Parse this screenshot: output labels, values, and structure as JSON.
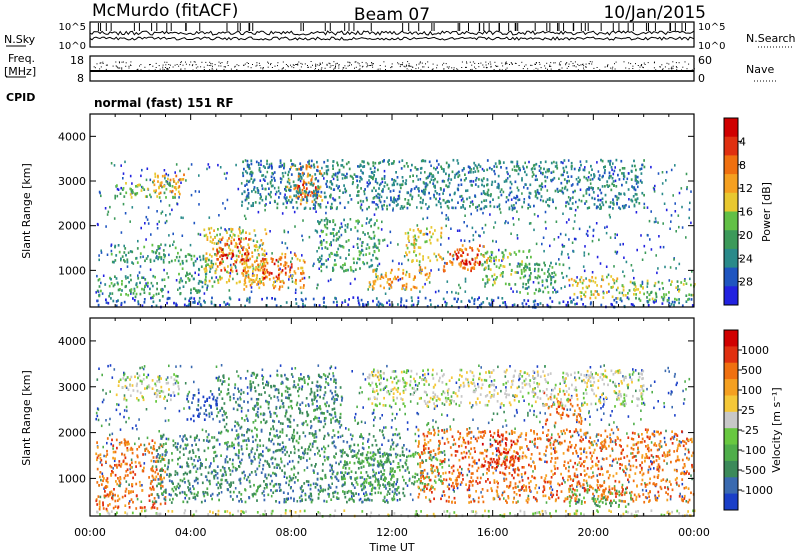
{
  "header": {
    "station": "McMurdo (fitACF)",
    "beam": "Beam 07",
    "date": "10/Jan/2015"
  },
  "noise_panel": {
    "left_label": "N.Sky",
    "right_label": "N.Search",
    "top_tick": "10^5",
    "bottom_tick": "10^0"
  },
  "freq_panel": {
    "left_label_1": "Freq.",
    "left_label_2": "[MHz]",
    "left_top_tick": "18",
    "left_bottom_tick": "8",
    "right_label": "Nave",
    "right_top_tick": "60",
    "right_bottom_tick": "0"
  },
  "cpid": {
    "label": "CPID",
    "value": "normal (fast) 151 RF"
  },
  "x_axis": {
    "label": "Time UT",
    "ticks": [
      "00:00",
      "04:00",
      "08:00",
      "12:00",
      "16:00",
      "20:00",
      "00:00"
    ]
  },
  "chart_data": [
    {
      "type": "heatmap",
      "title": "",
      "ylabel": "Slant Range [km]",
      "xlabel": "Time UT",
      "xlim_hours": [
        0,
        24
      ],
      "ylim_km": [
        180,
        4500
      ],
      "y_ticks": [
        "1000",
        "2000",
        "3000",
        "4000"
      ],
      "colorbar": {
        "label": "Power [dB]",
        "ticks": [
          "4",
          "8",
          "12",
          "16",
          "20",
          "24",
          "28"
        ],
        "colors": [
          "#2222e0",
          "#1f55c0",
          "#2a8a8a",
          "#3c9a5a",
          "#62c046",
          "#e8c830",
          "#f5a020",
          "#f07010",
          "#e03010",
          "#d00000"
        ]
      },
      "regions": [
        {
          "t0": 0.2,
          "t1": 24.0,
          "r0": 200,
          "r1": 420,
          "level": 1
        },
        {
          "t0": 0.2,
          "t1": 3.0,
          "r0": 420,
          "r1": 900,
          "level": 3
        },
        {
          "t0": 0.8,
          "t1": 3.5,
          "r0": 1200,
          "r1": 1600,
          "level": 3
        },
        {
          "t0": 1.0,
          "t1": 3.5,
          "r0": 2650,
          "r1": 3050,
          "level": 4
        },
        {
          "t0": 2.5,
          "t1": 3.7,
          "r0": 2700,
          "r1": 3200,
          "level": 6
        },
        {
          "t0": 3.5,
          "t1": 5.0,
          "r0": 500,
          "r1": 1400,
          "level": 3
        },
        {
          "t0": 4.5,
          "t1": 7.0,
          "r0": 700,
          "r1": 2000,
          "level": 5
        },
        {
          "t0": 5.0,
          "t1": 6.3,
          "r0": 1000,
          "r1": 1800,
          "level": 8
        },
        {
          "t0": 6.0,
          "t1": 8.5,
          "r0": 600,
          "r1": 1400,
          "level": 6
        },
        {
          "t0": 6.8,
          "t1": 8.0,
          "r0": 800,
          "r1": 1300,
          "level": 8
        },
        {
          "t0": 7.8,
          "t1": 9.2,
          "r0": 2500,
          "r1": 3400,
          "level": 6
        },
        {
          "t0": 8.2,
          "t1": 9.0,
          "r0": 2600,
          "r1": 2950,
          "level": 8
        },
        {
          "t0": 9.0,
          "t1": 11.5,
          "r0": 1000,
          "r1": 2200,
          "level": 3
        },
        {
          "t0": 11.0,
          "t1": 13.5,
          "r0": 600,
          "r1": 1100,
          "level": 6
        },
        {
          "t0": 12.5,
          "t1": 14.0,
          "r0": 1200,
          "r1": 2000,
          "level": 5
        },
        {
          "t0": 14.0,
          "t1": 15.8,
          "r0": 1000,
          "r1": 1600,
          "level": 7
        },
        {
          "t0": 14.5,
          "t1": 15.5,
          "r0": 1150,
          "r1": 1450,
          "level": 9
        },
        {
          "t0": 15.5,
          "t1": 17.5,
          "r0": 700,
          "r1": 1500,
          "level": 4
        },
        {
          "t0": 17.0,
          "t1": 18.8,
          "r0": 500,
          "r1": 1200,
          "level": 3
        },
        {
          "t0": 19.0,
          "t1": 21.0,
          "r0": 400,
          "r1": 900,
          "level": 5
        },
        {
          "t0": 21.0,
          "t1": 24.0,
          "r0": 350,
          "r1": 800,
          "level": 4
        },
        {
          "t0": 6.0,
          "t1": 22.0,
          "r0": 2400,
          "r1": 3500,
          "level": 2
        }
      ]
    },
    {
      "type": "heatmap",
      "title": "",
      "ylabel": "Slant Range [km]",
      "xlabel": "Time UT",
      "xlim_hours": [
        0,
        24
      ],
      "ylim_km": [
        180,
        4500
      ],
      "y_ticks": [
        "1000",
        "2000",
        "3000",
        "4000"
      ],
      "colorbar": {
        "label": "Velocity [m s⁻¹]",
        "ticks": [
          "1000",
          "500",
          "100",
          "25",
          "-25",
          "-100",
          "-500",
          "-1000"
        ],
        "colors": [
          "#1a3fc8",
          "#3a6ab0",
          "#3c8a5a",
          "#4fae4a",
          "#68c840",
          "#c8c8c8",
          "#f5c838",
          "#f5a020",
          "#f07010",
          "#e03010",
          "#d00000"
        ]
      },
      "regions": [
        {
          "t0": 0.2,
          "t1": 24.0,
          "r0": 200,
          "r1": 330,
          "level": 5
        },
        {
          "t0": 0.2,
          "t1": 3.0,
          "r0": 330,
          "r1": 1900,
          "level": 8
        },
        {
          "t0": 1.0,
          "t1": 3.5,
          "r0": 2700,
          "r1": 3300,
          "level": 5
        },
        {
          "t0": 2.5,
          "t1": 12.5,
          "r0": 500,
          "r1": 2000,
          "level": 2
        },
        {
          "t0": 5.0,
          "t1": 10.0,
          "r0": 2000,
          "r1": 3300,
          "level": 2
        },
        {
          "t0": 3.8,
          "t1": 5.0,
          "r0": 2300,
          "r1": 2900,
          "level": 0
        },
        {
          "t0": 10.0,
          "t1": 14.0,
          "r0": 800,
          "r1": 1600,
          "level": 3
        },
        {
          "t0": 13.0,
          "t1": 24.0,
          "r0": 500,
          "r1": 2100,
          "level": 8
        },
        {
          "t0": 15.5,
          "t1": 17.0,
          "r0": 1200,
          "r1": 2000,
          "level": 9
        },
        {
          "t0": 18.0,
          "t1": 19.5,
          "r0": 2200,
          "r1": 2900,
          "level": 8
        },
        {
          "t0": 11.0,
          "t1": 22.0,
          "r0": 2600,
          "r1": 3400,
          "level": 5
        },
        {
          "t0": 19.0,
          "t1": 21.5,
          "r0": 400,
          "r1": 800,
          "level": 3
        }
      ]
    }
  ]
}
